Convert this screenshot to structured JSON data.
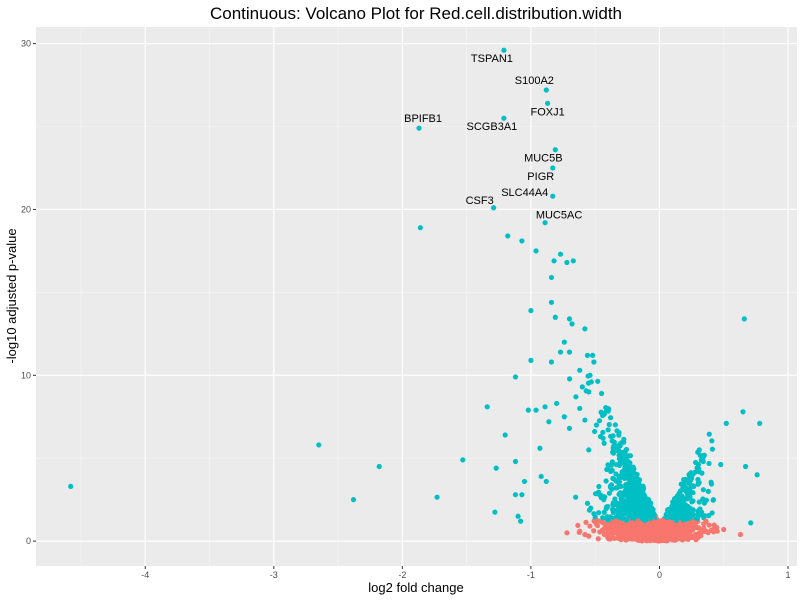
{
  "chart_data": {
    "type": "scatter",
    "title": "Continuous: Volcano Plot for Red.cell.distribution.width",
    "xlabel": "log2 fold change",
    "ylabel": "-log10 adjusted p-value",
    "xlim": [
      -4.85,
      1.07
    ],
    "ylim": [
      -1.5,
      31.0
    ],
    "xticks": [
      -4,
      -3,
      -2,
      -1,
      0,
      1
    ],
    "yticks": [
      0,
      10,
      20,
      30
    ],
    "grid": true,
    "legend": "none",
    "colors": {
      "significant": "#00BFC4",
      "not_significant": "#F8766D",
      "panel": "#EBEBEB"
    },
    "labeled_points": [
      {
        "label": "TSPAN1",
        "x": -1.21,
        "y": 29.6
      },
      {
        "label": "S100A2",
        "x": -0.88,
        "y": 27.2
      },
      {
        "label": "FOXJ1",
        "x": -0.87,
        "y": 26.4
      },
      {
        "label": "SCGB3A1",
        "x": -1.21,
        "y": 25.5
      },
      {
        "label": "BPIFB1",
        "x": -1.87,
        "y": 24.9
      },
      {
        "label": "MUC5B",
        "x": -0.81,
        "y": 23.6
      },
      {
        "label": "PIGR",
        "x": -0.83,
        "y": 22.5
      },
      {
        "label": "SLC44A4",
        "x": -0.83,
        "y": 20.8
      },
      {
        "label": "CSF3",
        "x": -1.29,
        "y": 20.1
      },
      {
        "label": "MUC5AC",
        "x": -0.89,
        "y": 19.2
      }
    ],
    "points": [
      [
        -4.58,
        3.3,
        1
      ],
      [
        -2.65,
        5.8,
        1
      ],
      [
        -2.18,
        4.5,
        1
      ],
      [
        -2.38,
        2.5,
        1
      ],
      [
        -1.73,
        2.65,
        1
      ],
      [
        -1.53,
        4.9,
        1
      ],
      [
        -1.86,
        18.9,
        1
      ],
      [
        -1.34,
        8.1,
        1
      ],
      [
        -1.28,
        1.75,
        1
      ],
      [
        -1.18,
        18.4,
        1
      ],
      [
        -1.07,
        18.1,
        1
      ],
      [
        -0.96,
        17.5,
        1
      ],
      [
        -0.82,
        16.9,
        1
      ],
      [
        -0.77,
        17.3,
        1
      ],
      [
        -0.72,
        16.8,
        1
      ],
      [
        -0.67,
        16.9,
        1
      ],
      [
        -0.84,
        15.9,
        1
      ],
      [
        -1.0,
        13.9,
        1
      ],
      [
        -0.84,
        14.4,
        1
      ],
      [
        -0.81,
        13.5,
        1
      ],
      [
        -0.7,
        13.4,
        1
      ],
      [
        -0.68,
        13.1,
        1
      ],
      [
        -0.58,
        12.8,
        1
      ],
      [
        -0.74,
        12.0,
        1
      ],
      [
        -0.77,
        11.4,
        1
      ],
      [
        -0.7,
        11.4,
        1
      ],
      [
        -0.56,
        11.2,
        1
      ],
      [
        -0.52,
        11.2,
        1
      ],
      [
        -0.51,
        10.8,
        1
      ],
      [
        -0.84,
        10.8,
        1
      ],
      [
        -0.62,
        10.3,
        1
      ],
      [
        -0.54,
        10.0,
        1
      ],
      [
        -0.53,
        9.6,
        1
      ],
      [
        -0.6,
        9.3,
        1
      ],
      [
        -0.55,
        9.0,
        1
      ],
      [
        -1.12,
        9.9,
        1
      ],
      [
        -1.0,
        10.9,
        1
      ],
      [
        -0.89,
        8.1,
        1
      ],
      [
        -1.02,
        7.9,
        1
      ],
      [
        -0.96,
        7.9,
        1
      ],
      [
        -0.93,
        5.6,
        1
      ],
      [
        -1.27,
        4.4,
        1
      ],
      [
        -1.2,
        6.4,
        1
      ],
      [
        -1.12,
        4.8,
        1
      ],
      [
        -1.12,
        2.8,
        1
      ],
      [
        -1.1,
        1.5,
        1
      ],
      [
        -1.08,
        1.2,
        1
      ],
      [
        -1.07,
        2.8,
        1
      ],
      [
        -1.05,
        3.6,
        1
      ],
      [
        -0.92,
        3.9,
        1
      ],
      [
        -0.88,
        3.6,
        1
      ],
      [
        -0.86,
        7.2,
        1
      ],
      [
        -0.8,
        8.3,
        1
      ],
      [
        -0.74,
        7.5,
        1
      ],
      [
        -0.7,
        6.8,
        1
      ],
      [
        -0.65,
        8.7,
        1
      ],
      [
        -0.62,
        8.0,
        1
      ],
      [
        -0.58,
        7.3,
        1
      ],
      [
        -0.55,
        5.5,
        1
      ],
      [
        -0.49,
        7.0,
        1
      ],
      [
        -0.45,
        8.9,
        1
      ],
      [
        -0.43,
        5.9,
        1
      ],
      [
        -0.36,
        5.6,
        1
      ],
      [
        -0.4,
        4.6,
        1
      ],
      [
        -0.3,
        3.3,
        1
      ],
      [
        0.66,
        13.4,
        1
      ],
      [
        0.52,
        7.1,
        1
      ],
      [
        0.65,
        7.8,
        1
      ],
      [
        0.78,
        7.1,
        1
      ],
      [
        0.67,
        4.5,
        1
      ],
      [
        0.76,
        4.0,
        1
      ],
      [
        0.71,
        1.1,
        1
      ],
      [
        0.31,
        5.5,
        1
      ],
      [
        0.34,
        4.8,
        1
      ],
      [
        0.33,
        4.1,
        1
      ],
      [
        0.23,
        3.6,
        1
      ],
      [
        0.25,
        3.8,
        1
      ],
      [
        0.38,
        3.0,
        1
      ],
      [
        0.42,
        2.5,
        1
      ],
      [
        0.41,
        1.7,
        1
      ],
      [
        0.63,
        0.4,
        0
      ],
      [
        -0.72,
        0.5,
        0
      ],
      [
        -0.62,
        0.6,
        0
      ],
      [
        -0.58,
        0.4,
        0
      ],
      [
        -0.55,
        0.3,
        0
      ],
      [
        0.45,
        0.6,
        0
      ],
      [
        0.5,
        0.7,
        0
      ]
    ]
  }
}
